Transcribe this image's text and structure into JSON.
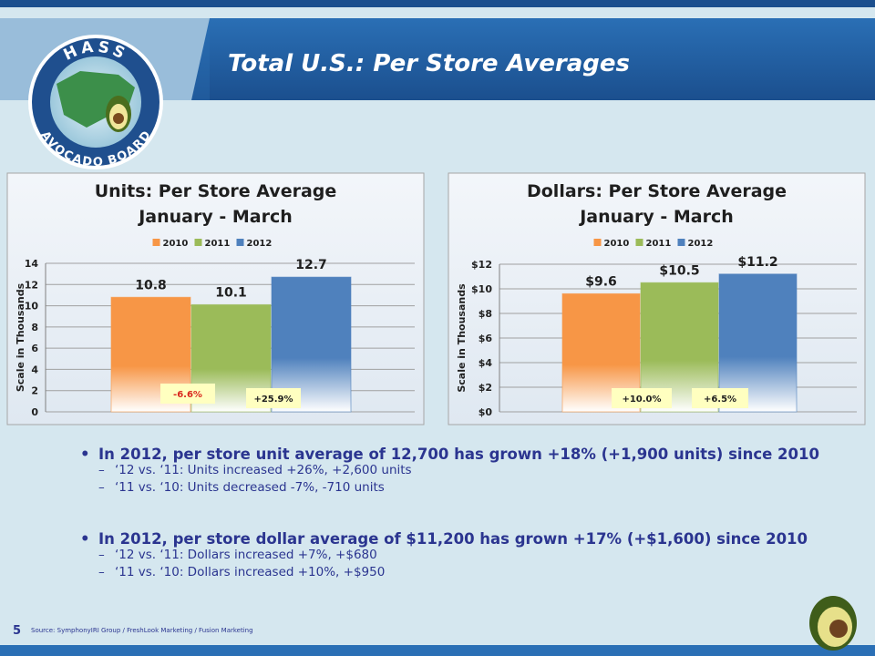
{
  "header": {
    "title": "Total U.S.: Per Store Averages",
    "logo_top": "HASS",
    "logo_bottom": "AVOCADO BOARD"
  },
  "chart_data": [
    {
      "type": "bar",
      "title": "Units: Per Store Average",
      "subtitle": "January - March",
      "y_label": "Scale in Thousands",
      "categories": [
        null
      ],
      "series": [
        {
          "name": "2010",
          "color": "#f79646",
          "values": [
            10.8
          ]
        },
        {
          "name": "2011",
          "color": "#9bbb59",
          "values": [
            10.1
          ]
        },
        {
          "name": "2012",
          "color": "#4f81bd",
          "values": [
            12.7
          ]
        }
      ],
      "ylim": [
        0,
        14
      ],
      "yticks": [
        0,
        2,
        4,
        6,
        8,
        10,
        12,
        14
      ],
      "grid": true,
      "legend": "top",
      "annotations": [
        "-6.6%",
        "+25.9%"
      ]
    },
    {
      "type": "bar",
      "title": "Dollars: Per Store Average",
      "subtitle": "January - March",
      "y_label": "Scale in Thousands",
      "categories": [
        null
      ],
      "series": [
        {
          "name": "2010",
          "color": "#f79646",
          "values": [
            9.6
          ],
          "value_labels": [
            "$9.6"
          ]
        },
        {
          "name": "2011",
          "color": "#9bbb59",
          "values": [
            10.5
          ],
          "value_labels": [
            "$10.5"
          ]
        },
        {
          "name": "2012",
          "color": "#4f81bd",
          "values": [
            11.2
          ],
          "value_labels": [
            "$11.2"
          ]
        }
      ],
      "ylim": [
        0,
        12
      ],
      "yticks": [
        {
          "value": 0,
          "label": "$0"
        },
        {
          "value": 2,
          "label": "$2"
        },
        {
          "value": 4,
          "label": "$4"
        },
        {
          "value": 6,
          "label": "$6"
        },
        {
          "value": 8,
          "label": "$8"
        },
        {
          "value": 10,
          "label": "$10"
        },
        {
          "value": 12,
          "label": "$12"
        }
      ],
      "grid": true,
      "legend": "top",
      "annotations": [
        "+10.0%",
        "+6.5%"
      ]
    }
  ],
  "bullets": [
    {
      "text": "In 2012, per store unit average of 12,700 has grown +18% (+1,900 units) since 2010",
      "subs": [
        "‘12 vs. ‘11: Units increased +26%, +2,600 units",
        "‘11 vs. ‘10: Units decreased -7%, -710 units"
      ]
    },
    {
      "text": "In 2012, per store dollar average of $11,200 has grown +17% (+$1,600) since 2010",
      "subs": [
        "‘12 vs. ‘11: Dollars increased +7%, +$680",
        "‘11 vs. ‘10: Dollars increased +10%, +$950"
      ]
    }
  ],
  "footer": {
    "page": "5",
    "source": "Source: SymphonyIRI Group / FreshLook Marketing / Fusion Marketing"
  }
}
